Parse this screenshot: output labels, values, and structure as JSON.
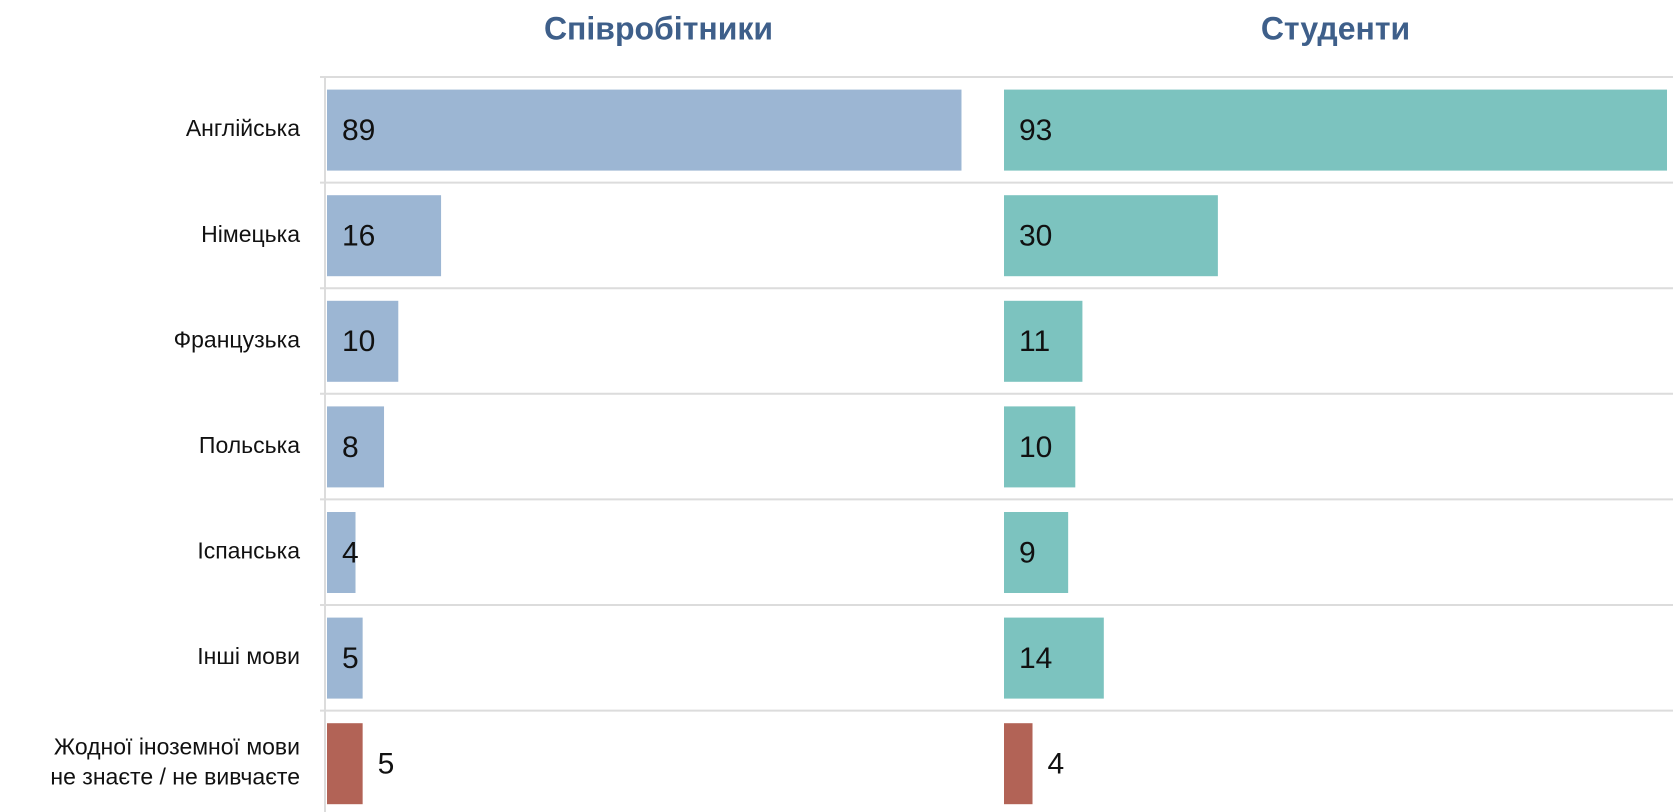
{
  "chart_data": {
    "type": "bar",
    "orientation": "horizontal",
    "categories": [
      "Англійська",
      "Німецька",
      "Французька",
      "Польська",
      "Іспанська",
      "Інші мови",
      "Жодної іноземної мови\nне знаєте / не вивчаєте"
    ],
    "series": [
      {
        "name": "Співробітники",
        "color": "#9cb6d3",
        "colors": [
          "#9cb6d3",
          "#9cb6d3",
          "#9cb6d3",
          "#9cb6d3",
          "#9cb6d3",
          "#9cb6d3",
          "#b26356"
        ],
        "values": [
          89,
          16,
          10,
          8,
          4,
          5,
          5
        ]
      },
      {
        "name": "Студенти",
        "color": "#7cc3bf",
        "colors": [
          "#7cc3bf",
          "#7cc3bf",
          "#7cc3bf",
          "#7cc3bf",
          "#7cc3bf",
          "#7cc3bf",
          "#b26356"
        ],
        "values": [
          93,
          30,
          11,
          10,
          9,
          14,
          4
        ]
      }
    ],
    "xlim": [
      0,
      93
    ],
    "grid": true
  }
}
